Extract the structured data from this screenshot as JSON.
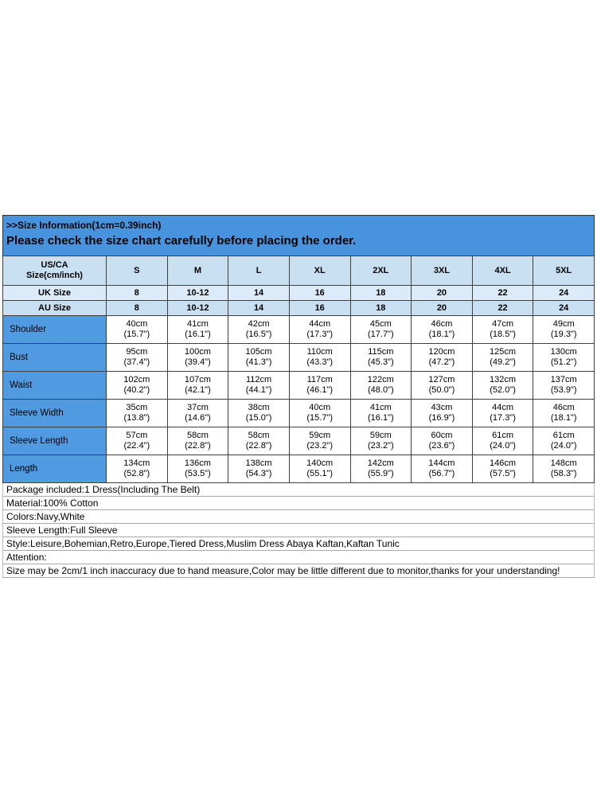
{
  "header": {
    "title": ">>Size Information(1cm=0.39inch)",
    "subtitle": "Please check the size chart carefully before placing the order."
  },
  "table": {
    "corner_line1": "US/CA",
    "corner_line2": "Size(cm/inch)",
    "size_columns": [
      "S",
      "M",
      "L",
      "XL",
      "2XL",
      "3XL",
      "4XL",
      "5XL"
    ],
    "uk_row": {
      "label": "UK Size",
      "values": [
        "8",
        "10-12",
        "14",
        "16",
        "18",
        "20",
        "22",
        "24"
      ]
    },
    "au_row": {
      "label": "AU Size",
      "values": [
        "8",
        "10-12",
        "14",
        "16",
        "18",
        "20",
        "22",
        "24"
      ]
    },
    "measurement_rows": [
      {
        "label": "Shoulder",
        "values": [
          [
            "40cm",
            "(15.7\")"
          ],
          [
            "41cm",
            "(16.1\")"
          ],
          [
            "42cm",
            "(16.5\")"
          ],
          [
            "44cm",
            "(17.3\")"
          ],
          [
            "45cm",
            "(17.7\")"
          ],
          [
            "46cm",
            "(18.1\")"
          ],
          [
            "47cm",
            "(18.5\")"
          ],
          [
            "49cm",
            "(19.3\")"
          ]
        ]
      },
      {
        "label": "Bust",
        "values": [
          [
            "95cm",
            "(37.4\")"
          ],
          [
            "100cm",
            "(39.4\")"
          ],
          [
            "105cm",
            "(41.3\")"
          ],
          [
            "110cm",
            "(43.3\")"
          ],
          [
            "115cm",
            "(45.3\")"
          ],
          [
            "120cm",
            "(47.2\")"
          ],
          [
            "125cm",
            "(49.2\")"
          ],
          [
            "130cm",
            "(51.2\")"
          ]
        ]
      },
      {
        "label": "Waist",
        "values": [
          [
            "102cm",
            "(40.2\")"
          ],
          [
            "107cm",
            "(42.1\")"
          ],
          [
            "112cm",
            "(44.1\")"
          ],
          [
            "117cm",
            "(46.1\")"
          ],
          [
            "122cm",
            "(48.0\")"
          ],
          [
            "127cm",
            "(50.0\")"
          ],
          [
            "132cm",
            "(52.0\")"
          ],
          [
            "137cm",
            "(53.9\")"
          ]
        ]
      },
      {
        "label": "Sleeve Width",
        "values": [
          [
            "35cm",
            "(13.8\")"
          ],
          [
            "37cm",
            "(14.6\")"
          ],
          [
            "38cm",
            "(15.0\")"
          ],
          [
            "40cm",
            "(15.7\")"
          ],
          [
            "41cm",
            "(16.1\")"
          ],
          [
            "43cm",
            "(16.9\")"
          ],
          [
            "44cm",
            "(17.3\")"
          ],
          [
            "46cm",
            "(18.1\")"
          ]
        ]
      },
      {
        "label": "Sleeve Length",
        "values": [
          [
            "57cm",
            "(22.4\")"
          ],
          [
            "58cm",
            "(22.8\")"
          ],
          [
            "58cm",
            "(22.8\")"
          ],
          [
            "59cm",
            "(23.2\")"
          ],
          [
            "59cm",
            "(23.2\")"
          ],
          [
            "60cm",
            "(23.6\")"
          ],
          [
            "61cm",
            "(24.0\")"
          ],
          [
            "61cm",
            "(24.0\")"
          ]
        ]
      },
      {
        "label": "Length",
        "values": [
          [
            "134cm",
            "(52.8\")"
          ],
          [
            "136cm",
            "(53.5\")"
          ],
          [
            "138cm",
            "(54.3\")"
          ],
          [
            "140cm",
            "(55.1\")"
          ],
          [
            "142cm",
            "(55.9\")"
          ],
          [
            "144cm",
            "(56.7\")"
          ],
          [
            "146cm",
            "(57.5\")"
          ],
          [
            "148cm",
            "(58.3\")"
          ]
        ]
      }
    ]
  },
  "details": [
    "Package included:1 Dress(Including The Belt)",
    "Material:100% Cotton",
    "Colors:Navy,White",
    "Sleeve Length:Full Sleeve",
    "Style:Leisure,Bohemian,Retro,Europe,Tiered Dress,Muslim Dress Abaya Kaftan,Kaftan Tunic",
    "Attention:",
    "Size may be 2cm/1 inch inaccuracy due to hand measure,Color may be little different due to monitor,thanks for your understanding!"
  ],
  "colors": {
    "header_bar": "#4793de",
    "label_column": "#4f9ae0",
    "header_row": "#c9dff2",
    "alt_row": "#dcebfa",
    "border": "#404040"
  }
}
